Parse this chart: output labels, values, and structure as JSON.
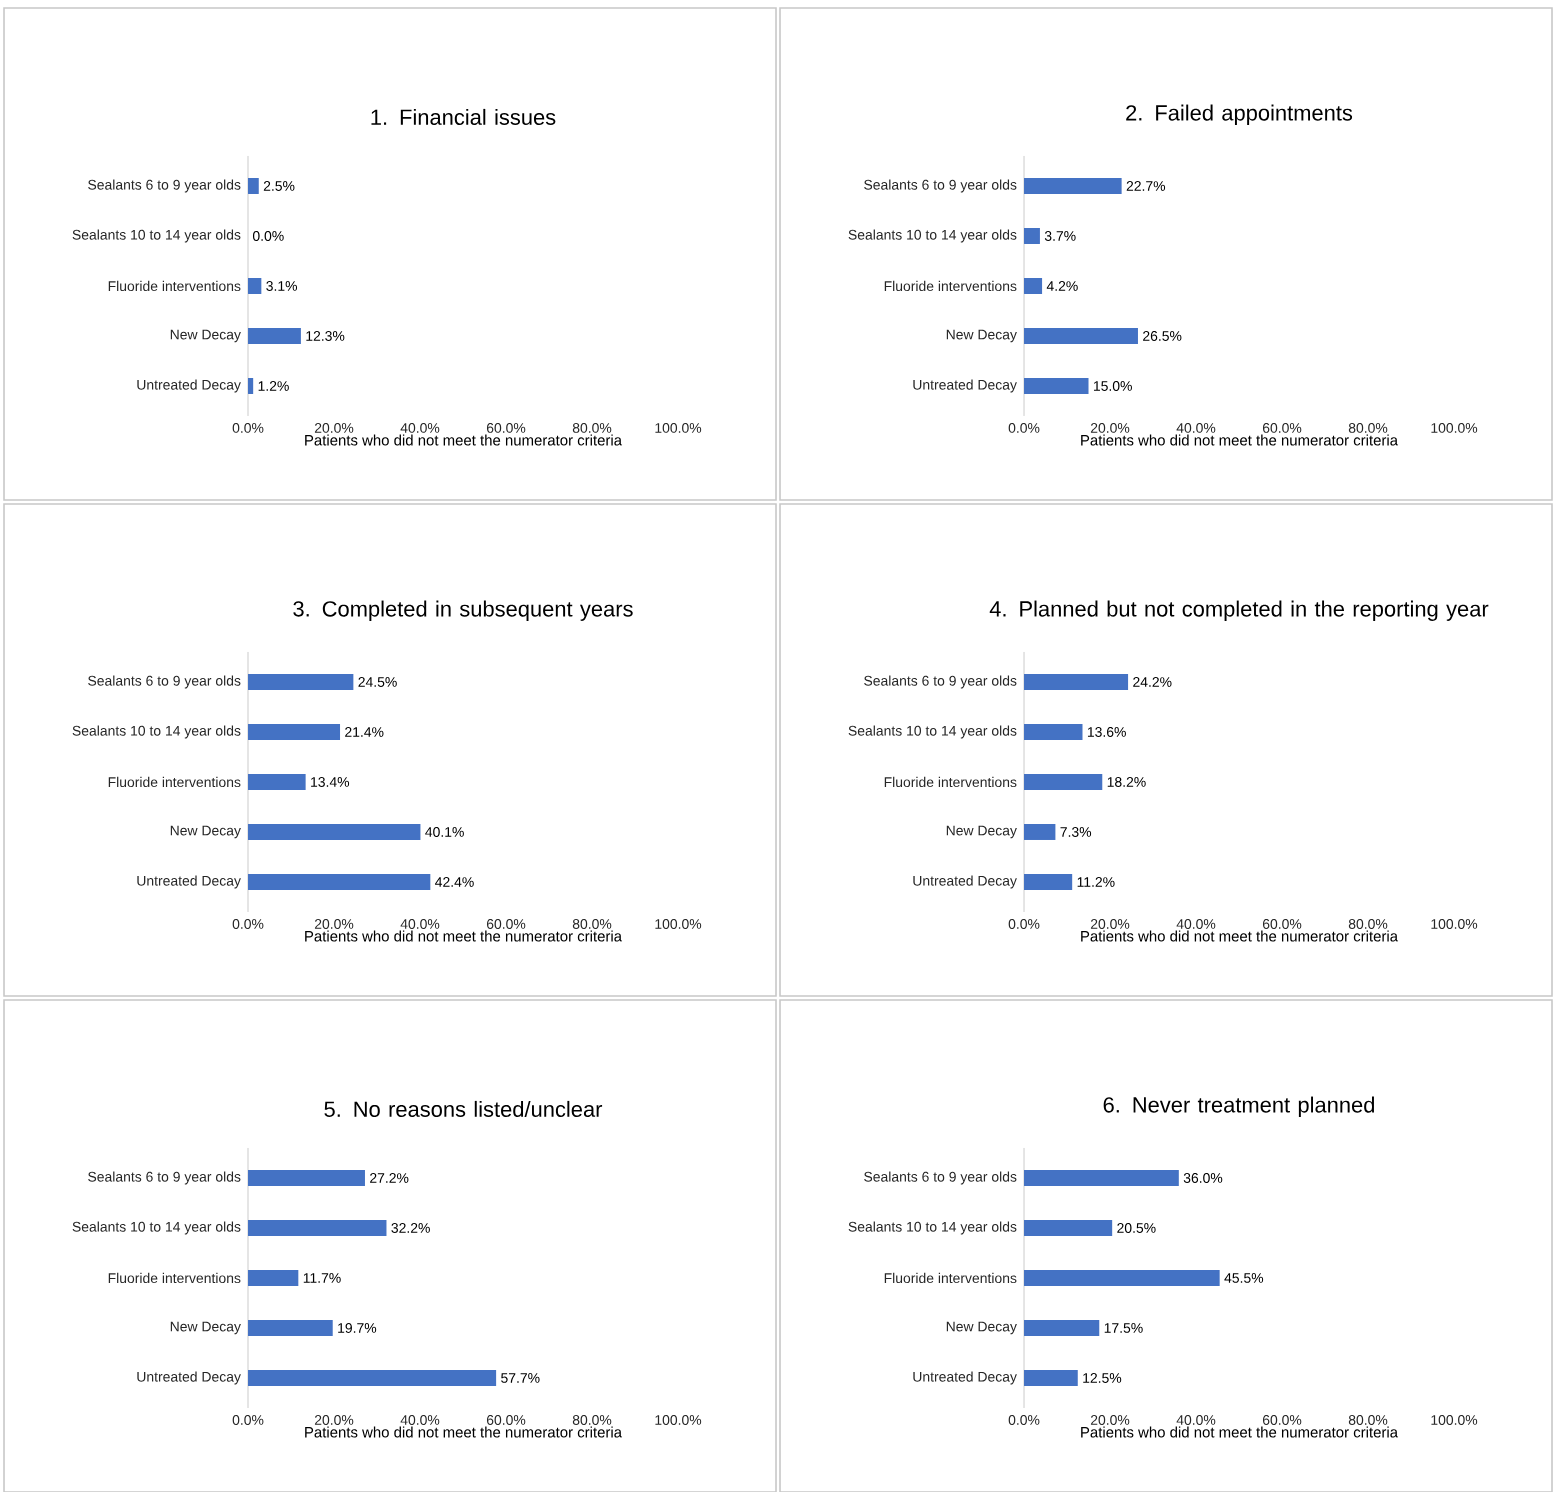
{
  "chart_data": [
    {
      "type": "bar",
      "orientation": "horizontal",
      "title": "1. Financial issues",
      "xlabel": "Patients who did not meet the numerator criteria",
      "categories": [
        "Sealants 6 to 9 year olds",
        "Sealants 10 to 14 year olds",
        "Fluoride interventions",
        "New Decay",
        "Untreated Decay"
      ],
      "values": [
        2.5,
        0.0,
        3.1,
        12.3,
        1.2
      ],
      "value_labels": [
        "2.5%",
        "0.0%",
        "3.1%",
        "12.3%",
        "1.2%"
      ],
      "color": "#4472c4",
      "xlim": [
        0,
        100
      ],
      "xticks": [
        {
          "value": 0,
          "label": "0.0%"
        },
        {
          "value": 20,
          "label": "20.0%"
        },
        {
          "value": 40,
          "label": "40.0%"
        },
        {
          "value": 60,
          "label": "60.0%"
        },
        {
          "value": 80,
          "label": "80.0%"
        },
        {
          "value": 100,
          "label": "100.0%"
        }
      ]
    },
    {
      "type": "bar",
      "orientation": "horizontal",
      "title": "2. Failed appointments",
      "xlabel": "Patients who did not meet the numerator criteria",
      "categories": [
        "Sealants 6 to 9 year olds",
        "Sealants 10 to 14 year olds",
        "Fluoride interventions",
        "New Decay",
        "Untreated Decay"
      ],
      "values": [
        22.7,
        3.7,
        4.2,
        26.5,
        15.0
      ],
      "value_labels": [
        "22.7%",
        "3.7%",
        "4.2%",
        "26.5%",
        "15.0%"
      ],
      "color": "#4472c4",
      "xlim": [
        0,
        100
      ],
      "xticks": [
        {
          "value": 0,
          "label": "0.0%"
        },
        {
          "value": 20,
          "label": "20.0%"
        },
        {
          "value": 40,
          "label": "40.0%"
        },
        {
          "value": 60,
          "label": "60.0%"
        },
        {
          "value": 80,
          "label": "80.0%"
        },
        {
          "value": 100,
          "label": "100.0%"
        }
      ]
    },
    {
      "type": "bar",
      "orientation": "horizontal",
      "title": "3. Completed in subsequent years",
      "xlabel": "Patients who did not meet the numerator criteria",
      "categories": [
        "Sealants 6 to 9 year olds",
        "Sealants 10 to 14 year olds",
        "Fluoride interventions",
        "New Decay",
        "Untreated Decay"
      ],
      "values": [
        24.5,
        21.4,
        13.4,
        40.1,
        42.4
      ],
      "value_labels": [
        "24.5%",
        "21.4%",
        "13.4%",
        "40.1%",
        "42.4%"
      ],
      "color": "#4472c4",
      "xlim": [
        0,
        100
      ],
      "xticks": [
        {
          "value": 0,
          "label": "0.0%"
        },
        {
          "value": 20,
          "label": "20.0%"
        },
        {
          "value": 40,
          "label": "40.0%"
        },
        {
          "value": 60,
          "label": "60.0%"
        },
        {
          "value": 80,
          "label": "80.0%"
        },
        {
          "value": 100,
          "label": "100.0%"
        }
      ]
    },
    {
      "type": "bar",
      "orientation": "horizontal",
      "title": "4. Planned but not completed in the reporting year",
      "xlabel": "Patients who did not meet the numerator criteria",
      "categories": [
        "Sealants 6 to 9 year olds",
        "Sealants 10 to 14 year olds",
        "Fluoride interventions",
        "New Decay",
        "Untreated Decay"
      ],
      "values": [
        24.2,
        13.6,
        18.2,
        7.3,
        11.2
      ],
      "value_labels": [
        "24.2%",
        "13.6%",
        "18.2%",
        "7.3%",
        "11.2%"
      ],
      "color": "#4472c4",
      "xlim": [
        0,
        100
      ],
      "xticks": [
        {
          "value": 0,
          "label": "0.0%"
        },
        {
          "value": 20,
          "label": "20.0%"
        },
        {
          "value": 40,
          "label": "40.0%"
        },
        {
          "value": 60,
          "label": "60.0%"
        },
        {
          "value": 80,
          "label": "80.0%"
        },
        {
          "value": 100,
          "label": "100.0%"
        }
      ]
    },
    {
      "type": "bar",
      "orientation": "horizontal",
      "title": "5. No reasons listed/unclear",
      "xlabel": "Patients who did not meet the numerator criteria",
      "categories": [
        "Sealants 6 to 9 year olds",
        "Sealants 10 to 14 year olds",
        "Fluoride interventions",
        "New Decay",
        "Untreated Decay"
      ],
      "values": [
        27.2,
        32.2,
        11.7,
        19.7,
        57.7
      ],
      "value_labels": [
        "27.2%",
        "32.2%",
        "11.7%",
        "19.7%",
        "57.7%"
      ],
      "color": "#4472c4",
      "xlim": [
        0,
        100
      ],
      "xticks": [
        {
          "value": 0,
          "label": "0.0%"
        },
        {
          "value": 20,
          "label": "20.0%"
        },
        {
          "value": 40,
          "label": "40.0%"
        },
        {
          "value": 60,
          "label": "60.0%"
        },
        {
          "value": 80,
          "label": "80.0%"
        },
        {
          "value": 100,
          "label": "100.0%"
        }
      ]
    },
    {
      "type": "bar",
      "orientation": "horizontal",
      "title": "6. Never treatment planned",
      "xlabel": "Patients who did not meet the numerator criteria",
      "categories": [
        "Sealants 6 to 9 year olds",
        "Sealants 10 to 14 year olds",
        "Fluoride interventions",
        "New Decay",
        "Untreated Decay"
      ],
      "values": [
        36.0,
        20.5,
        45.5,
        17.5,
        12.5
      ],
      "value_labels": [
        "36.0%",
        "20.5%",
        "45.5%",
        "17.5%",
        "12.5%"
      ],
      "color": "#4472c4",
      "xlim": [
        0,
        100
      ],
      "xticks": [
        {
          "value": 0,
          "label": "0.0%"
        },
        {
          "value": 20,
          "label": "20.0%"
        },
        {
          "value": 40,
          "label": "40.0%"
        },
        {
          "value": 60,
          "label": "60.0%"
        },
        {
          "value": 80,
          "label": "80.0%"
        },
        {
          "value": 100,
          "label": "100.0%"
        }
      ]
    }
  ]
}
